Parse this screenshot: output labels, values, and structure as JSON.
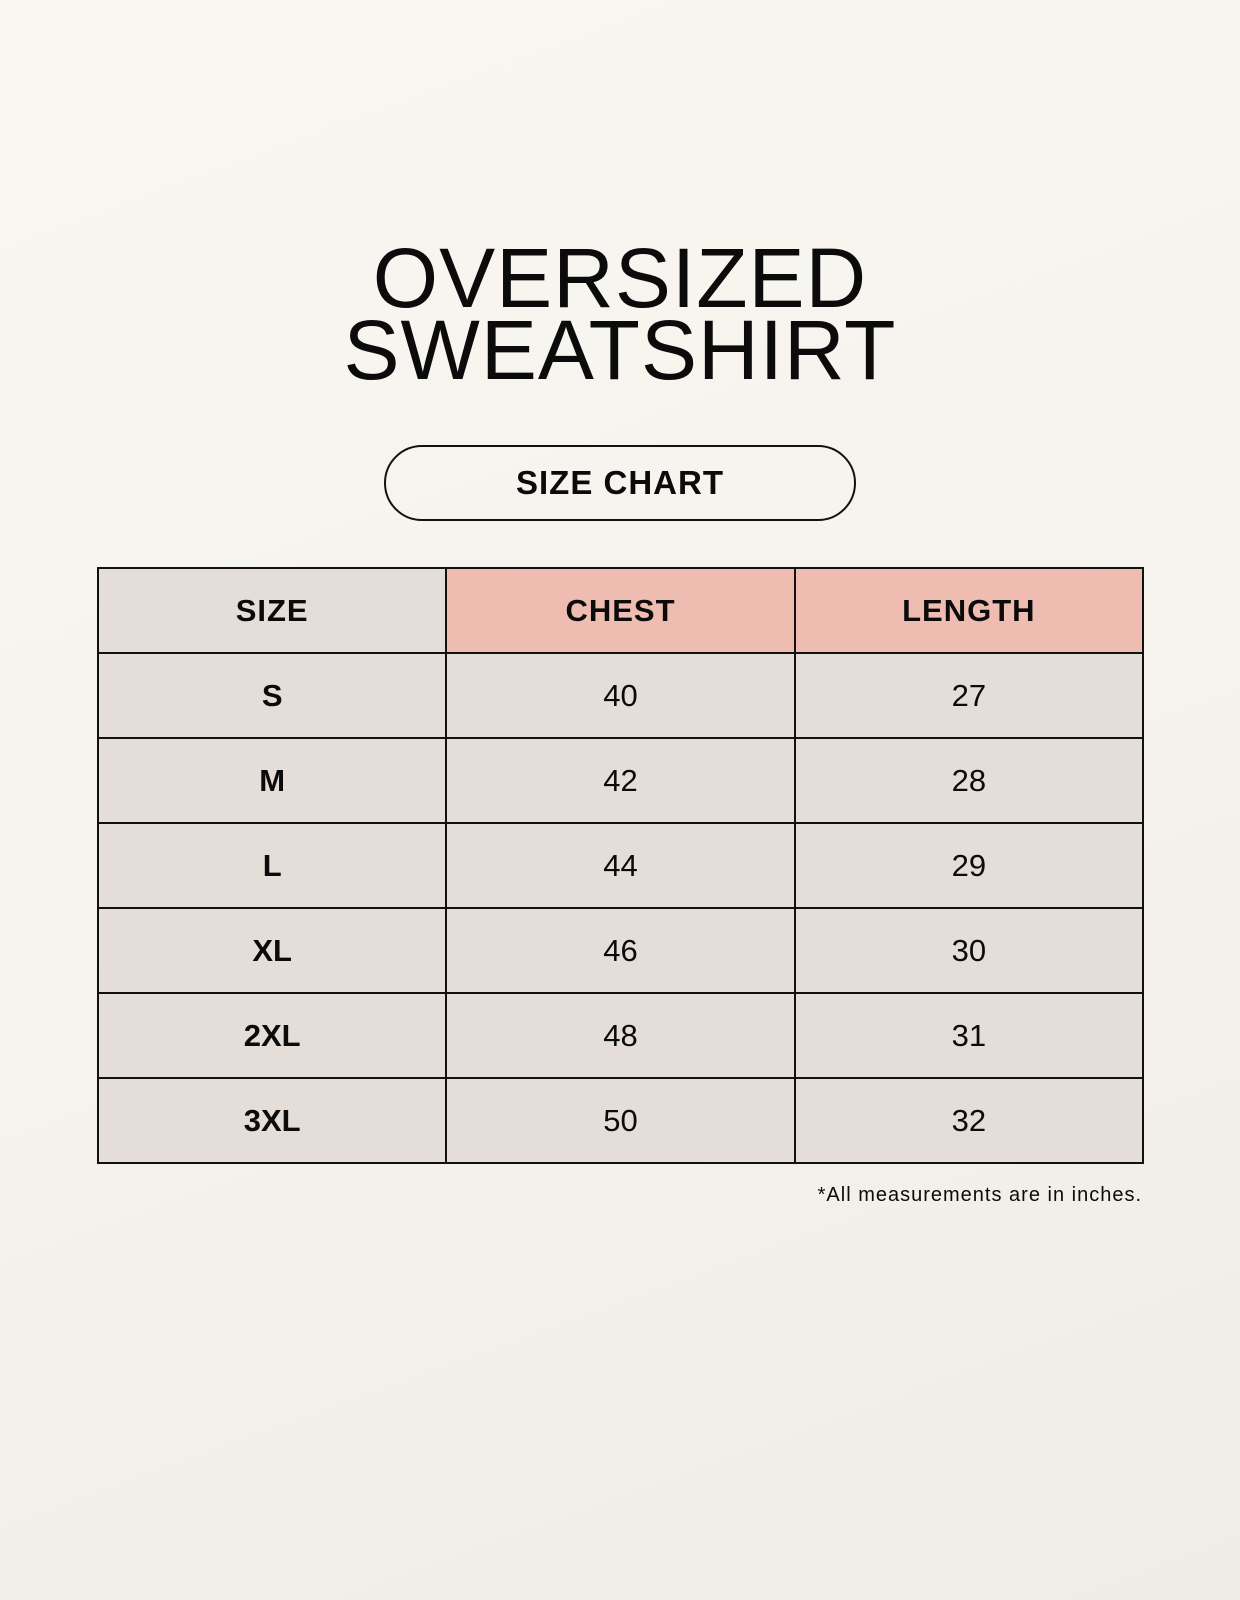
{
  "title": {
    "line1": "OVERSIZED",
    "line2": "SWEATSHIRT"
  },
  "subtitle": "SIZE CHART",
  "table": {
    "headers": [
      "SIZE",
      "CHEST",
      "LENGTH"
    ],
    "rows": [
      [
        "S",
        "40",
        "27"
      ],
      [
        "M",
        "42",
        "28"
      ],
      [
        "L",
        "44",
        "29"
      ],
      [
        "XL",
        "46",
        "30"
      ],
      [
        "2XL",
        "48",
        "31"
      ],
      [
        "3XL",
        "50",
        "32"
      ]
    ]
  },
  "note": "*All measurements are in inches.",
  "colors": {
    "header_accent": "#eebcb0",
    "cell_bg": "#e5ddd8",
    "page_bg": "#f7f4ee"
  }
}
